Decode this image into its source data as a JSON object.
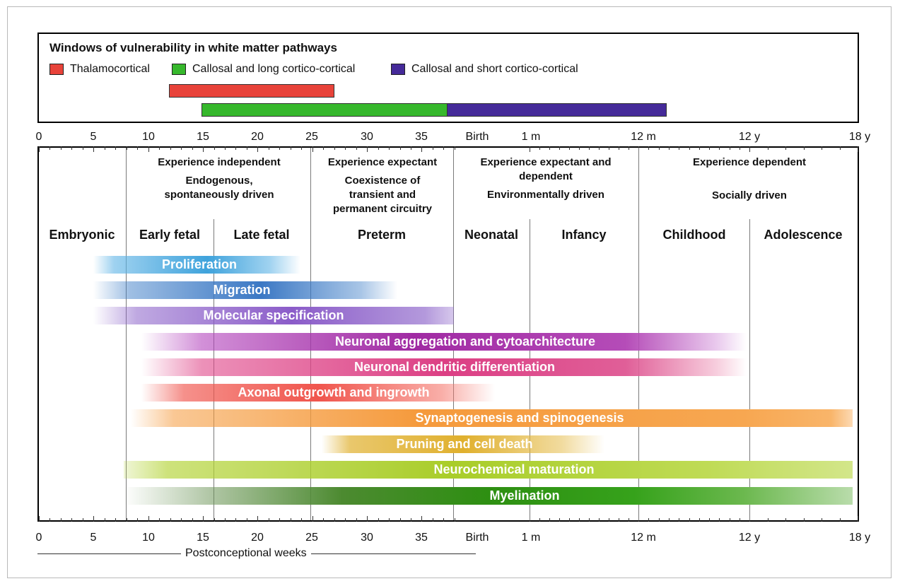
{
  "legend": {
    "title": "Windows of vulnerability in white matter pathways",
    "items": [
      {
        "label": "Thalamocortical",
        "color": "#e8433a"
      },
      {
        "label": "Callosal and long cortico-cortical",
        "color": "#36b82c"
      },
      {
        "label": "Callosal and short cortico-cortical",
        "color": "#452a99"
      }
    ]
  },
  "axis": {
    "labels": [
      "0",
      "5",
      "10",
      "15",
      "20",
      "25",
      "30",
      "35",
      "Birth",
      "1 m",
      "12 m",
      "12 y",
      "18 y"
    ],
    "bottom_caption": "Postconceptional weeks"
  },
  "headers": {
    "experience_independent": {
      "title": "Experience independent",
      "sub": "Endogenous,\nspontaneously driven"
    },
    "experience_expectant": {
      "title": "Experience expectant",
      "sub": "Coexistence of\ntransient and\npermanent circuitry"
    },
    "experience_expectant_dependent": {
      "title": "Experience expectant and\ndependent",
      "sub": "Environmentally driven"
    },
    "experience_dependent": {
      "title": "Experience dependent",
      "sub": "Socially driven"
    }
  },
  "stages": [
    "Embryonic",
    "Early fetal",
    "Late fetal",
    "Preterm",
    "Neonatal",
    "Infancy",
    "Childhood",
    "Adolescence"
  ],
  "processes": [
    {
      "label": "Proliferation",
      "color": "#5fb4e6"
    },
    {
      "label": "Migration",
      "color": "#3f7fc8"
    },
    {
      "label": "Molecular specification",
      "color": "#8b62c9"
    },
    {
      "label": "Neuronal aggregation and cytoarchitecture",
      "color": "#a32aa6"
    },
    {
      "label": "Neuronal dendritic differentiation",
      "color": "#e0488a"
    },
    {
      "label": "Axonal outgrowth and ingrowth",
      "color": "#f0554d"
    },
    {
      "label": "Synaptogenesis and spinogenesis",
      "color": "#f59a3c"
    },
    {
      "label": "Pruning and cell death",
      "color": "#e0b02e"
    },
    {
      "label": "Neurochemical maturation",
      "color": "#b3d335"
    },
    {
      "label": "Myelination",
      "color": "#2f9314"
    }
  ]
}
